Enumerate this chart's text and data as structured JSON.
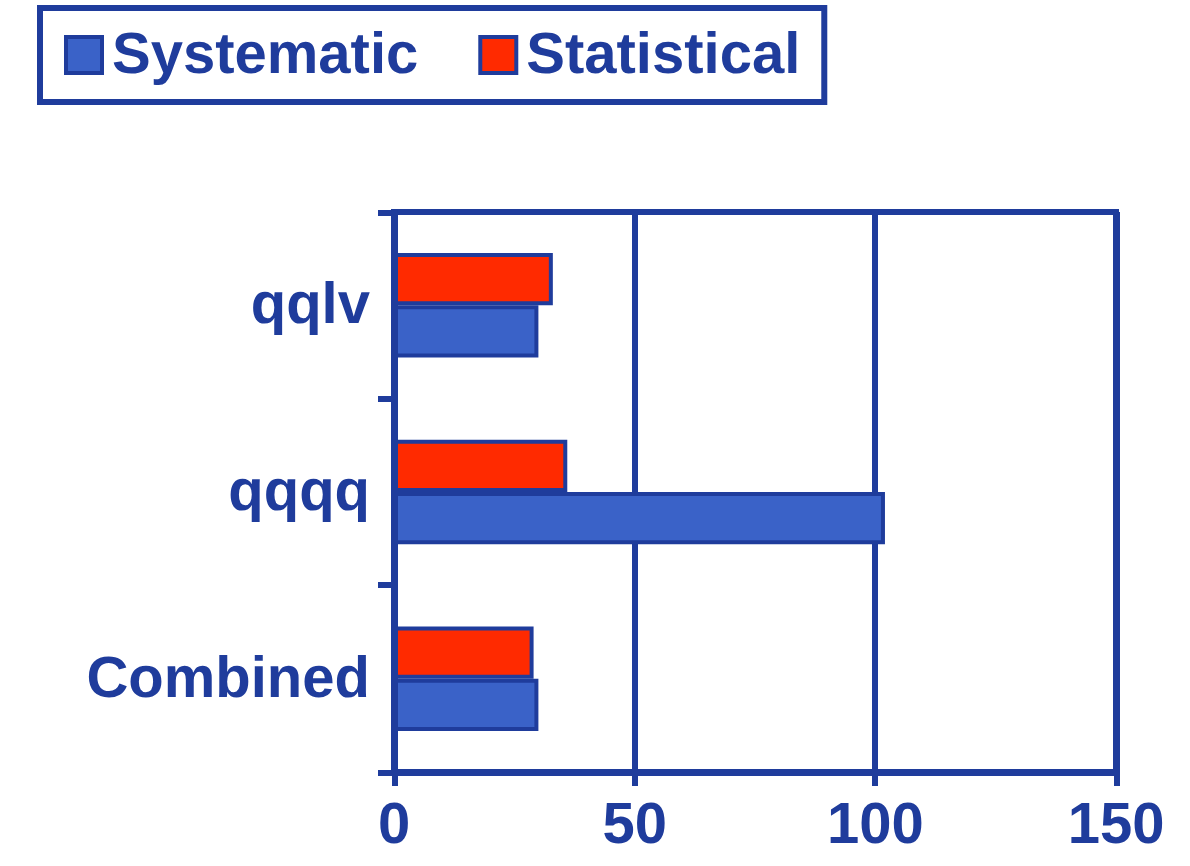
{
  "chart_data": {
    "type": "bar",
    "orientation": "horizontal",
    "categories": [
      "qqlv",
      "qqqq",
      "Combined"
    ],
    "series": [
      {
        "name": "Systematic",
        "color": "#3a62c8",
        "values": [
          30,
          102,
          30
        ]
      },
      {
        "name": "Statistical",
        "color": "#ff2a00",
        "values": [
          33,
          36,
          29
        ]
      }
    ],
    "xlim": [
      0,
      150
    ],
    "xticks": [
      0,
      50,
      100,
      150
    ],
    "grid": "x",
    "legend": "top left"
  }
}
